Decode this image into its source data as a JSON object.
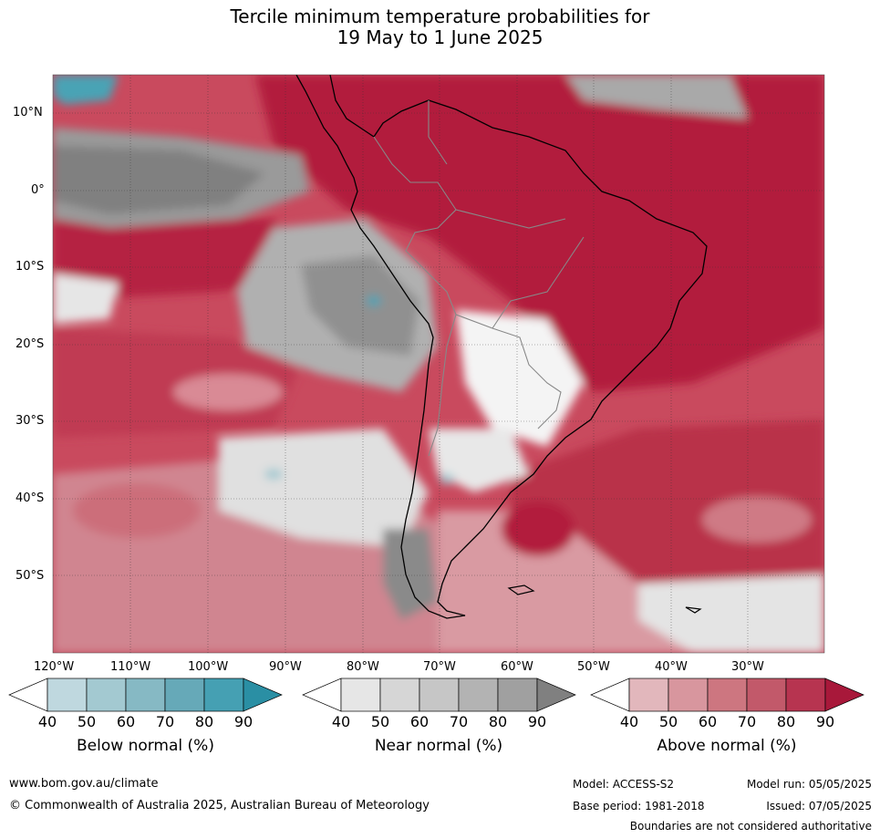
{
  "title_line1": "Tercile minimum temperature probabilities for",
  "title_line2": "19 May to 1 June 2025",
  "lon_labels": [
    "120°W",
    "110°W",
    "100°W",
    "90°W",
    "80°W",
    "70°W",
    "60°W",
    "50°W",
    "40°W",
    "30°W"
  ],
  "lat_labels": [
    "10°N",
    "0°",
    "10°S",
    "20°S",
    "30°S",
    "40°S",
    "50°S"
  ],
  "colorbars": [
    {
      "title": "Below normal (%)",
      "ticks": [
        "40",
        "50",
        "60",
        "70",
        "80",
        "90"
      ],
      "colors": [
        "#ffffff",
        "#bfd8df",
        "#a3c9d1",
        "#86b9c4",
        "#66a9b8",
        "#45a0b3",
        "#2a8fa4"
      ]
    },
    {
      "title": "Near normal (%)",
      "ticks": [
        "40",
        "50",
        "60",
        "70",
        "80",
        "90"
      ],
      "colors": [
        "#ffffff",
        "#e6e6e6",
        "#d6d6d6",
        "#c6c6c6",
        "#b3b3b3",
        "#a0a0a0",
        "#808080"
      ]
    },
    {
      "title": "Above normal (%)",
      "ticks": [
        "40",
        "50",
        "60",
        "70",
        "80",
        "90"
      ],
      "colors": [
        "#ffffff",
        "#e2b7bc",
        "#d8969e",
        "#cd7680",
        "#c2596a",
        "#b73450",
        "#a8183a"
      ]
    }
  ],
  "footer": {
    "url": "www.bom.gov.au/climate",
    "copyright": "© Commonwealth of Australia 2025, Australian Bureau of Meteorology",
    "model": "Model: ACCESS-S2",
    "model_run": "Model run: 05/05/2025",
    "base_period": "Base period: 1981-2018",
    "issued": "Issued: 07/05/2025",
    "boundaries": "Boundaries are not considered authoritative"
  }
}
